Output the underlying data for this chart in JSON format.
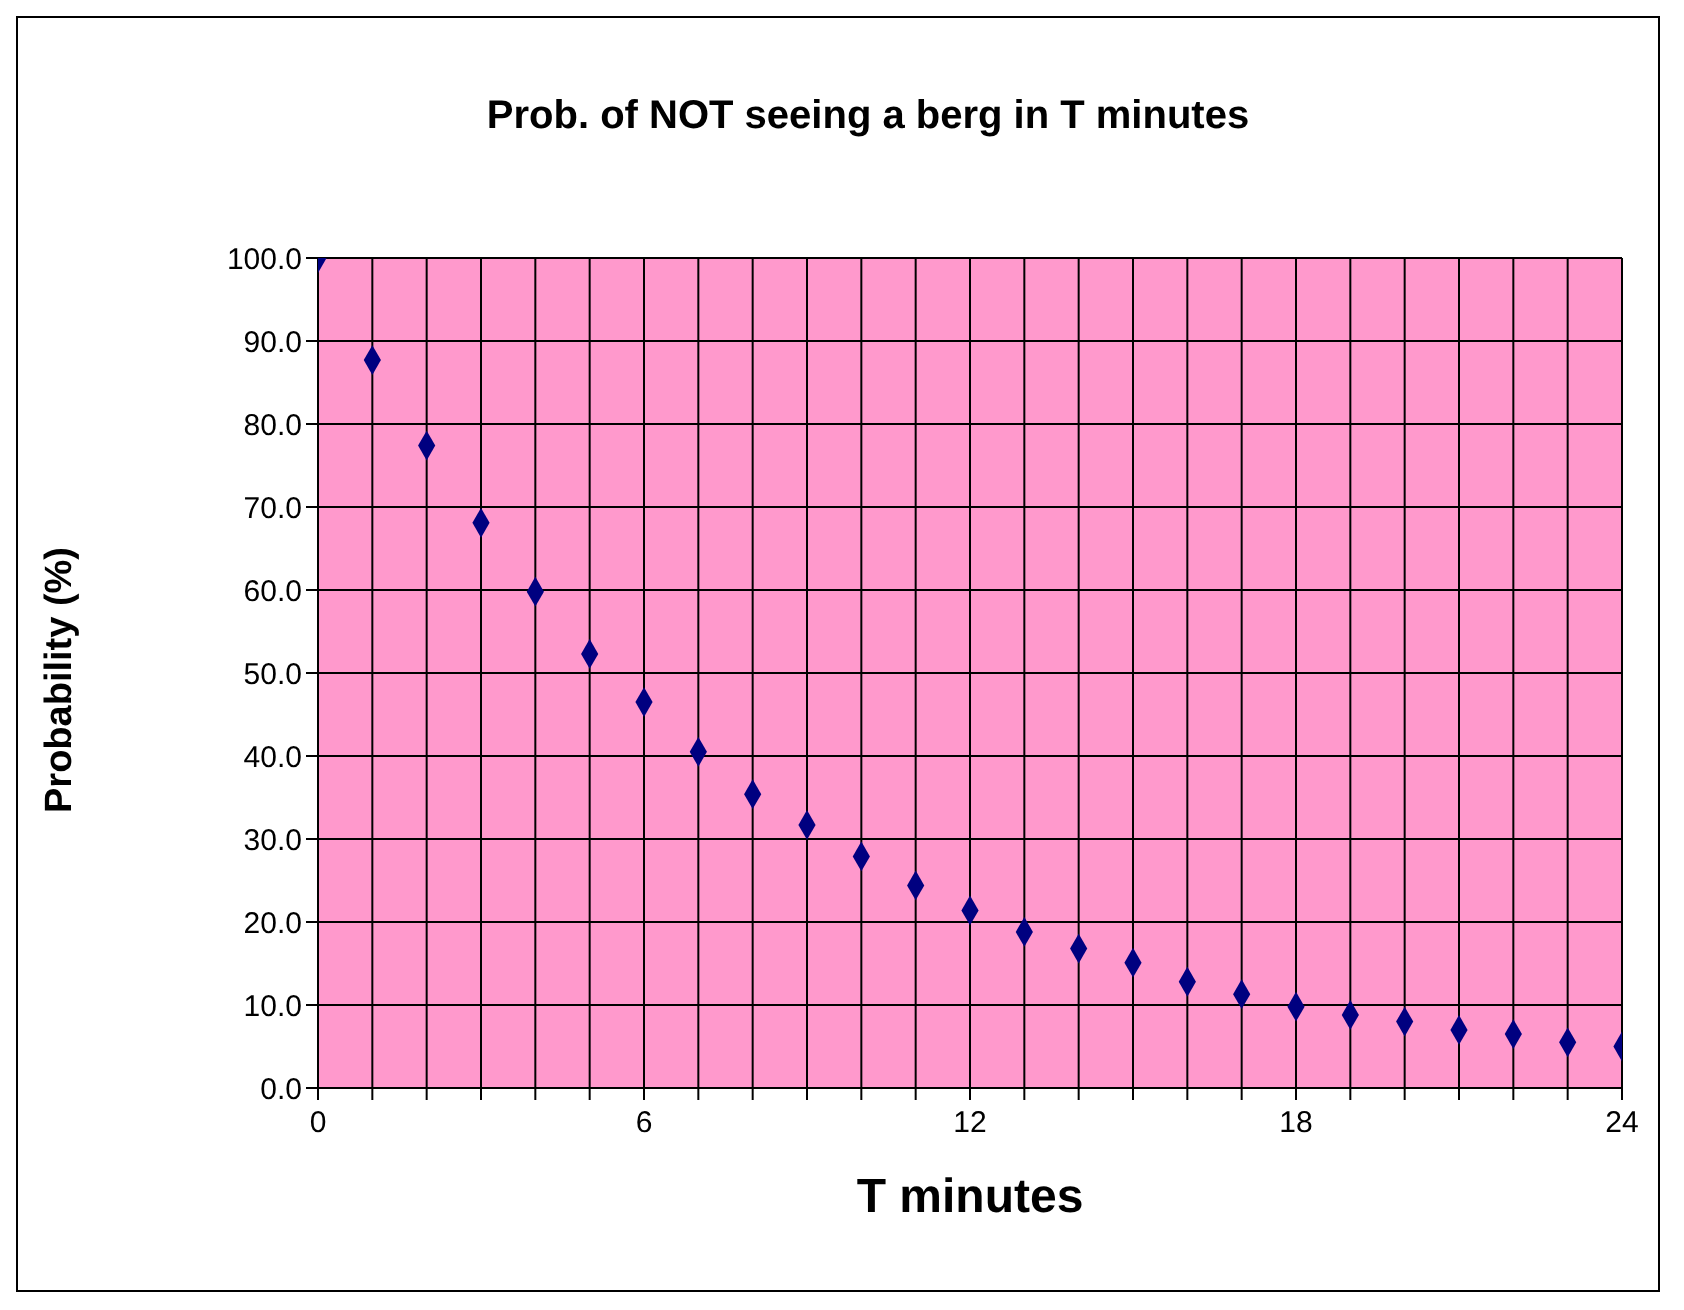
{
  "chart_data": {
    "type": "scatter",
    "title": "Prob. of NOT seeing a berg in T minutes",
    "xlabel": "T minutes",
    "ylabel": "Probability (%)",
    "x": [
      0,
      1,
      2,
      3,
      4,
      5,
      6,
      7,
      8,
      9,
      10,
      11,
      12,
      13,
      14,
      15,
      16,
      17,
      18,
      19,
      20,
      21,
      22,
      23,
      24
    ],
    "series": [
      {
        "color": "#000080",
        "values": [
          100,
          87.7,
          77.4,
          68.1,
          59.8,
          52.3,
          46.5,
          40.5,
          35.4,
          31.7,
          27.9,
          24.4,
          21.4,
          18.8,
          16.8,
          15.1,
          12.8,
          11.3,
          9.8,
          8.8,
          8.0,
          7.0,
          6.5,
          5.5,
          5.0
        ]
      }
    ],
    "xlim": [
      0,
      24
    ],
    "xticks": [
      0,
      {
        "value": 1,
        "label": null
      },
      {
        "value": 2,
        "label": null
      },
      {
        "value": 3,
        "label": null
      },
      {
        "value": 4,
        "label": null
      },
      {
        "value": 5,
        "label": null
      },
      6,
      {
        "value": 7,
        "label": null
      },
      {
        "value": 8,
        "label": null
      },
      {
        "value": 9,
        "label": null
      },
      {
        "value": 10,
        "label": null
      },
      {
        "value": 11,
        "label": null
      },
      12,
      {
        "value": 13,
        "label": null
      },
      {
        "value": 14,
        "label": null
      },
      {
        "value": 15,
        "label": null
      },
      {
        "value": 16,
        "label": null
      },
      {
        "value": 17,
        "label": null
      },
      18,
      {
        "value": 19,
        "label": null
      },
      {
        "value": 20,
        "label": null
      },
      {
        "value": 21,
        "label": null
      },
      {
        "value": 22,
        "label": null
      },
      {
        "value": 23,
        "label": null
      },
      24
    ],
    "ylim": [
      0,
      100
    ],
    "yticks": [
      {
        "value": 0,
        "label": "0.0"
      },
      {
        "value": 10,
        "label": "10.0"
      },
      {
        "value": 20,
        "label": "20.0"
      },
      {
        "value": 30,
        "label": "30.0"
      },
      {
        "value": 40,
        "label": "40.0"
      },
      {
        "value": 50,
        "label": "50.0"
      },
      {
        "value": 60,
        "label": "60.0"
      },
      {
        "value": 70,
        "label": "70.0"
      },
      {
        "value": 80,
        "label": "80.0"
      },
      {
        "value": 90,
        "label": "90.0"
      },
      {
        "value": 100,
        "label": "100.0"
      }
    ],
    "grid": true,
    "marker": "diamond"
  }
}
